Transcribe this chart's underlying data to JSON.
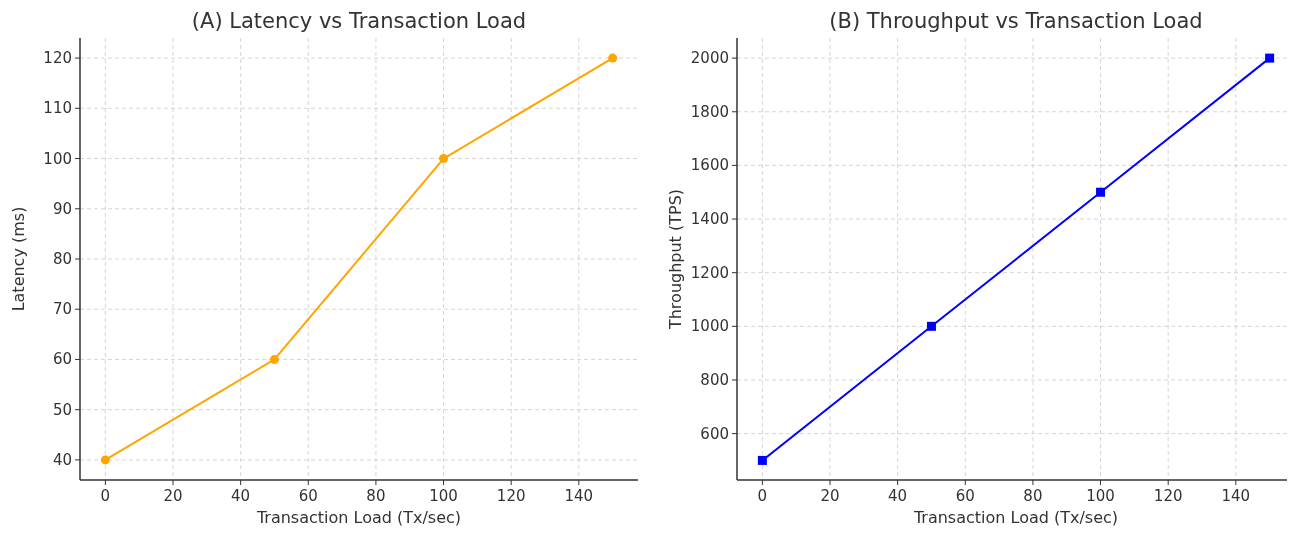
{
  "chart_data": [
    {
      "type": "line",
      "title": "(A) Latency vs Transaction Load",
      "xlabel": "Transaction Load (Tx/sec)",
      "ylabel": "Latency (ms)",
      "x": [
        0,
        50,
        100,
        150
      ],
      "series": [
        {
          "color": "#ffa500",
          "values": [
            40,
            60,
            100,
            120
          ]
        }
      ],
      "xlim": [
        -7.5,
        157.5
      ],
      "xticks": [
        0,
        20,
        40,
        60,
        80,
        100,
        120,
        140
      ],
      "ylim": [
        36,
        124
      ],
      "yticks": [
        40,
        50,
        60,
        70,
        80,
        90,
        100,
        110,
        120
      ],
      "grid": true,
      "marker": "circle",
      "line_style": "solid"
    },
    {
      "type": "line",
      "title": "(B) Throughput vs Transaction Load",
      "xlabel": "Transaction Load (Tx/sec)",
      "ylabel": "Throughput (TPS)",
      "x": [
        0,
        50,
        100,
        150
      ],
      "series": [
        {
          "color": "#0000ff",
          "values": [
            500,
            1000,
            1500,
            2000
          ]
        }
      ],
      "xlim": [
        -7.5,
        157.5
      ],
      "xticks": [
        0,
        20,
        40,
        60,
        80,
        100,
        120,
        140
      ],
      "ylim": [
        427,
        2075
      ],
      "yticks": [
        600,
        800,
        1000,
        1200,
        1400,
        1600,
        1800,
        2000
      ],
      "grid": true,
      "marker": "square",
      "line_style": "solid"
    }
  ]
}
